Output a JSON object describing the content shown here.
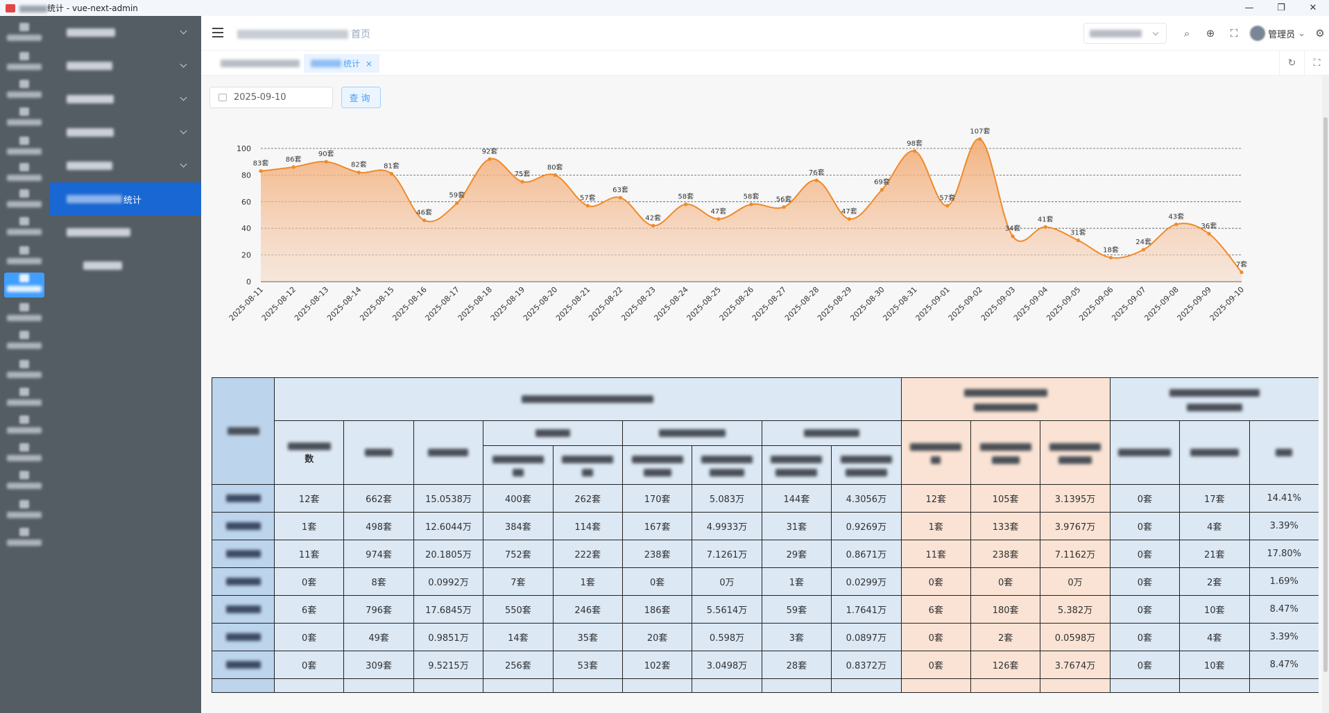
{
  "window": {
    "title": "vue-next-admin",
    "title_prefix": "统计 - ",
    "controls": [
      "—",
      "❐",
      "✕"
    ]
  },
  "sidebar": {
    "submenu_active_suffix": "统计"
  },
  "navbar": {
    "breadcrumb_suffix": "首页",
    "user_label": "管理员"
  },
  "tags": {
    "active_suffix": "统计",
    "close": "×"
  },
  "filter": {
    "date_value": "2025-09-10",
    "query_label": "查询"
  },
  "chart_data": {
    "type": "area",
    "categories": [
      "2025-08-11",
      "2025-08-12",
      "2025-08-13",
      "2025-08-14",
      "2025-08-15",
      "2025-08-16",
      "2025-08-17",
      "2025-08-18",
      "2025-08-19",
      "2025-08-20",
      "2025-08-21",
      "2025-08-22",
      "2025-08-23",
      "2025-08-24",
      "2025-08-25",
      "2025-08-26",
      "2025-08-27",
      "2025-08-28",
      "2025-08-29",
      "2025-08-30",
      "2025-08-31",
      "2025-09-01",
      "2025-09-02",
      "2025-09-03",
      "2025-09-04",
      "2025-09-05",
      "2025-09-06",
      "2025-09-07",
      "2025-09-08",
      "2025-09-09",
      "2025-09-10"
    ],
    "values": [
      83,
      86,
      90,
      82,
      81,
      46,
      59,
      92,
      75,
      80,
      57,
      63,
      42,
      58,
      47,
      58,
      56,
      76,
      47,
      69,
      98,
      57,
      107,
      34,
      41,
      31,
      18,
      24,
      43,
      36,
      7
    ],
    "label_suffix": "套",
    "ylim": [
      0,
      100
    ],
    "yticks": [
      0,
      20,
      40,
      60,
      80,
      100
    ],
    "grid": true,
    "color": "#f08a28"
  },
  "table": {
    "header_visible": "数",
    "rows": [
      [
        "12套",
        "662套",
        "15.0538万",
        "400套",
        "262套",
        "170套",
        "5.083万",
        "144套",
        "4.3056万",
        "12套",
        "105套",
        "3.1395万",
        "0套",
        "17套",
        "14.41%"
      ],
      [
        "1套",
        "498套",
        "12.6044万",
        "384套",
        "114套",
        "167套",
        "4.9933万",
        "31套",
        "0.9269万",
        "1套",
        "133套",
        "3.9767万",
        "0套",
        "4套",
        "3.39%"
      ],
      [
        "11套",
        "974套",
        "20.1805万",
        "752套",
        "222套",
        "238套",
        "7.1261万",
        "29套",
        "0.8671万",
        "11套",
        "238套",
        "7.1162万",
        "0套",
        "21套",
        "17.80%"
      ],
      [
        "0套",
        "8套",
        "0.0992万",
        "7套",
        "1套",
        "0套",
        "0万",
        "1套",
        "0.0299万",
        "0套",
        "0套",
        "0万",
        "0套",
        "2套",
        "1.69%"
      ],
      [
        "6套",
        "796套",
        "17.6845万",
        "550套",
        "246套",
        "186套",
        "5.5614万",
        "59套",
        "1.7641万",
        "6套",
        "180套",
        "5.382万",
        "0套",
        "10套",
        "8.47%"
      ],
      [
        "0套",
        "49套",
        "0.9851万",
        "14套",
        "35套",
        "20套",
        "0.598万",
        "3套",
        "0.0897万",
        "0套",
        "2套",
        "0.0598万",
        "0套",
        "4套",
        "3.39%"
      ],
      [
        "0套",
        "309套",
        "9.5215万",
        "256套",
        "53套",
        "102套",
        "3.0498万",
        "28套",
        "0.8372万",
        "0套",
        "126套",
        "3.7674万",
        "0套",
        "10套",
        "8.47%"
      ]
    ]
  },
  "colors": {
    "sidebar_bg": "#545c64",
    "active_menu": "#1967d2",
    "accent": "#409eff",
    "table_blue": "#dce8f4",
    "table_orange": "#fae3d4"
  }
}
